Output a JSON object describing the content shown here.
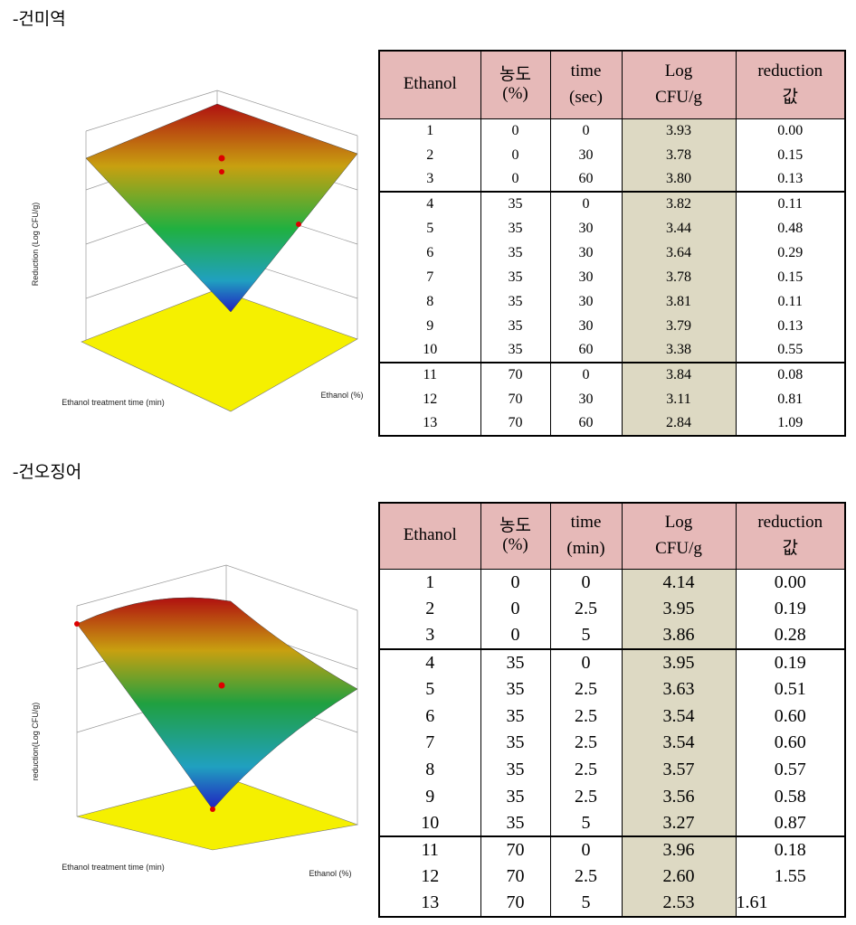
{
  "sections": [
    {
      "title": "-건미역",
      "plot": {
        "z_label": "Reduction (Log CFU/g)",
        "x_label": "Ethanol treatment time (min)",
        "y_label": "Ethanol (%)"
      },
      "table": {
        "header": [
          [
            "Ethanol"
          ],
          [
            "농도",
            "(%)"
          ],
          [
            "time",
            "(sec)"
          ],
          [
            "Log",
            "CFU/g"
          ],
          [
            "reduction",
            "값"
          ]
        ],
        "rows": [
          [
            "1",
            "0",
            "0",
            "3.93",
            "0.00"
          ],
          [
            "2",
            "0",
            "30",
            "3.78",
            "0.15"
          ],
          [
            "3",
            "0",
            "60",
            "3.80",
            "0.13"
          ],
          [
            "4",
            "35",
            "0",
            "3.82",
            "0.11"
          ],
          [
            "5",
            "35",
            "30",
            "3.44",
            "0.48"
          ],
          [
            "6",
            "35",
            "30",
            "3.64",
            "0.29"
          ],
          [
            "7",
            "35",
            "30",
            "3.78",
            "0.15"
          ],
          [
            "8",
            "35",
            "30",
            "3.81",
            "0.11"
          ],
          [
            "9",
            "35",
            "30",
            "3.79",
            "0.13"
          ],
          [
            "10",
            "35",
            "60",
            "3.38",
            "0.55"
          ],
          [
            "11",
            "70",
            "0",
            "3.84",
            "0.08"
          ],
          [
            "12",
            "70",
            "30",
            "3.11",
            "0.81"
          ],
          [
            "13",
            "70",
            "60",
            "2.84",
            "1.09"
          ]
        ]
      }
    },
    {
      "title": "-건오징어",
      "plot": {
        "z_label": "reduction(Log CFU/g)",
        "x_label": "Ethanol treatment time (min)",
        "y_label": "Ethanol (%)"
      },
      "table": {
        "header": [
          [
            "Ethanol"
          ],
          [
            "농도",
            "(%)"
          ],
          [
            "time",
            "(min)"
          ],
          [
            "Log",
            "CFU/g"
          ],
          [
            "reduction",
            "값"
          ]
        ],
        "rows": [
          [
            "1",
            "0",
            "0",
            "4.14",
            "0.00"
          ],
          [
            "2",
            "0",
            "2.5",
            "3.95",
            "0.19"
          ],
          [
            "3",
            "0",
            "5",
            "3.86",
            "0.28"
          ],
          [
            "4",
            "35",
            "0",
            "3.95",
            "0.19"
          ],
          [
            "5",
            "35",
            "2.5",
            "3.63",
            "0.51"
          ],
          [
            "6",
            "35",
            "2.5",
            "3.54",
            "0.60"
          ],
          [
            "7",
            "35",
            "2.5",
            "3.54",
            "0.60"
          ],
          [
            "8",
            "35",
            "2.5",
            "3.57",
            "0.57"
          ],
          [
            "9",
            "35",
            "2.5",
            "3.56",
            "0.58"
          ],
          [
            "10",
            "35",
            "5",
            "3.27",
            "0.87"
          ],
          [
            "11",
            "70",
            "0",
            "3.96",
            "0.18"
          ],
          [
            "12",
            "70",
            "2.5",
            "2.60",
            "1.55"
          ],
          [
            "13",
            "70",
            "5",
            "2.53",
            "1.61"
          ]
        ]
      }
    }
  ]
}
